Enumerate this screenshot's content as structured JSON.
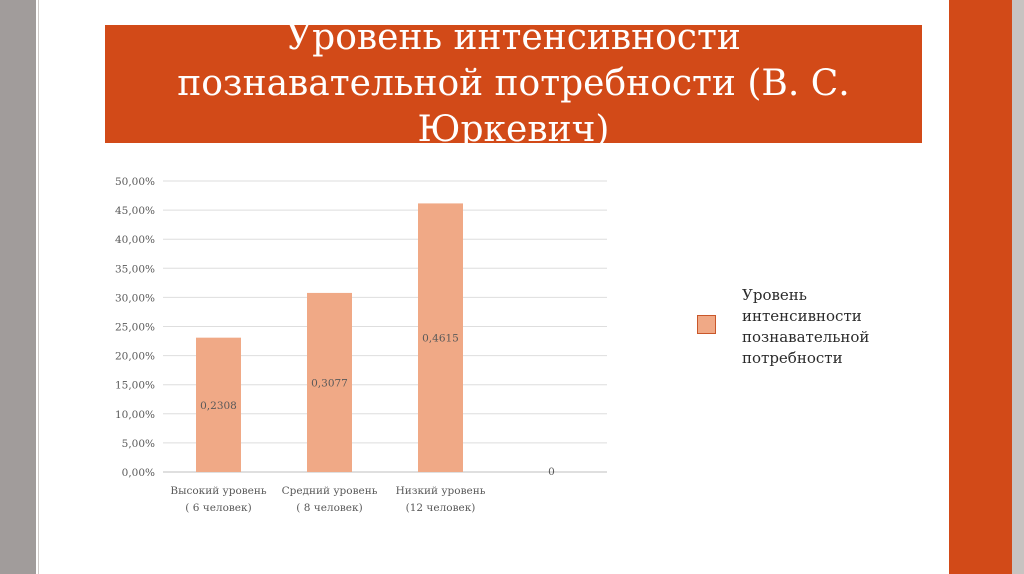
{
  "title": "Уровень интенсивности познавательной потребности (В. С. Юркевич)",
  "colors": {
    "title_bg": "#d24a18",
    "bar_fill": "#f0a986",
    "legend_border": "#c9572a",
    "left_bar": "#a19c9b"
  },
  "chart_data": {
    "type": "bar",
    "categories": [
      [
        "Высокий уровень",
        "( 6 человек)"
      ],
      [
        "Средний уровень",
        "( 8 человек)"
      ],
      [
        "Низкий уровень",
        "(12 человек)"
      ],
      [
        "",
        ""
      ]
    ],
    "series": [
      {
        "name": "Уровень интенсивности познавательной потребности",
        "values": [
          0.2308,
          0.3077,
          0.4615,
          0
        ],
        "data_labels": [
          "0,2308",
          "0,3077",
          "0,4615",
          "0"
        ]
      }
    ],
    "ylim": [
      0,
      0.5
    ],
    "yticks": [
      0,
      0.05,
      0.1,
      0.15,
      0.2,
      0.25,
      0.3,
      0.35,
      0.4,
      0.45,
      0.5
    ],
    "ytick_labels": [
      "0,00%",
      "5,00%",
      "10,00%",
      "15,00%",
      "20,00%",
      "25,00%",
      "30,00%",
      "35,00%",
      "40,00%",
      "45,00%",
      "50,00%"
    ],
    "grid": true,
    "legend_position": "right"
  }
}
